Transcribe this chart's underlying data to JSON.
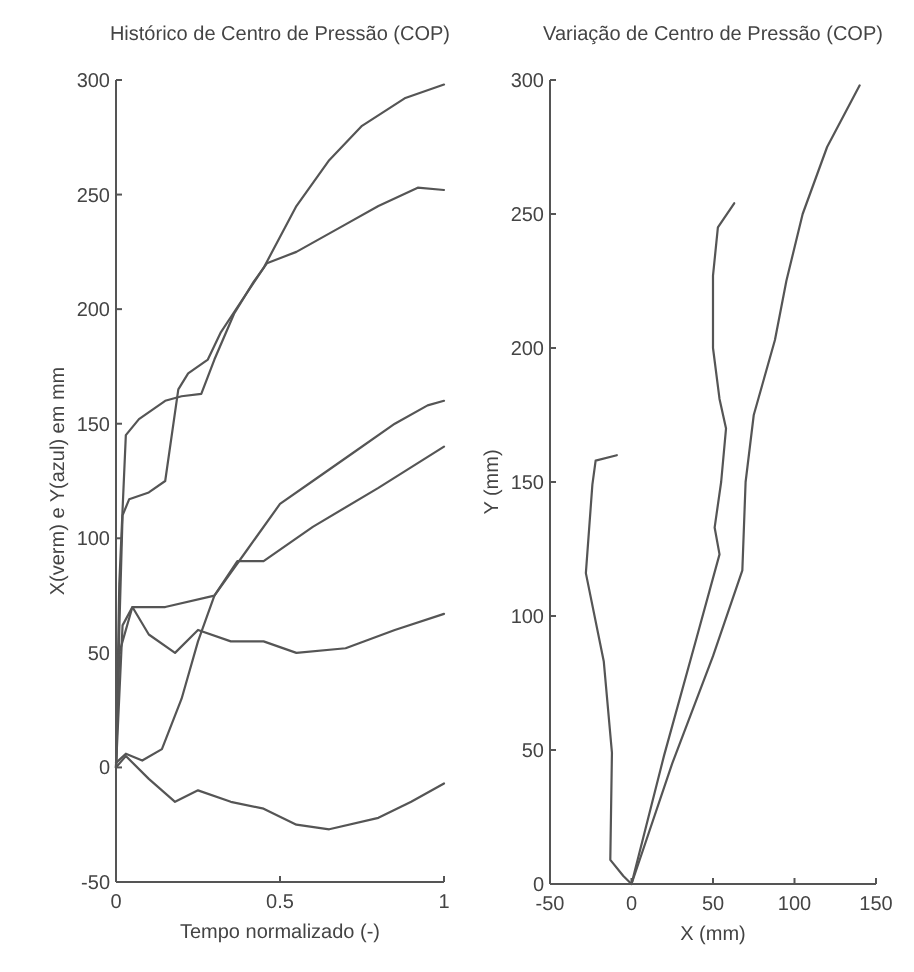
{
  "chart_data": [
    {
      "type": "line",
      "title": "Histórico de Centro de Pressão (COP)",
      "xlabel": "Tempo normalizado (-)",
      "ylabel": "X(verm) e Y(azul) em mm",
      "xlim": [
        0,
        1
      ],
      "xticks": [
        0,
        0.5,
        1
      ],
      "ylim": [
        -50,
        300
      ],
      "yticks": [
        -50,
        0,
        50,
        100,
        150,
        200,
        250,
        300
      ],
      "series": [
        {
          "color": "#555555",
          "x": [
            0,
            0.01,
            0.02,
            0.04,
            0.1,
            0.15,
            0.19,
            0.22,
            0.28,
            0.32,
            0.38,
            0.45,
            0.55,
            0.65,
            0.75,
            0.88,
            1
          ],
          "values": [
            0,
            60,
            110,
            117,
            120,
            125,
            165,
            172,
            178,
            190,
            203,
            218,
            245,
            265,
            280,
            292,
            298
          ]
        },
        {
          "color": "#555555",
          "x": [
            0,
            0.01,
            0.03,
            0.07,
            0.15,
            0.2,
            0.26,
            0.3,
            0.36,
            0.42,
            0.46,
            0.55,
            0.7,
            0.8,
            0.92,
            1
          ],
          "values": [
            0,
            80,
            145,
            152,
            160,
            162,
            163,
            178,
            198,
            212,
            220,
            225,
            237,
            245,
            253,
            252
          ]
        },
        {
          "color": "#555555",
          "x": [
            0,
            0.03,
            0.08,
            0.14,
            0.2,
            0.25,
            0.3,
            0.4,
            0.5,
            0.6,
            0.72,
            0.85,
            0.95,
            1
          ],
          "values": [
            2,
            6,
            3,
            8,
            30,
            55,
            75,
            95,
            115,
            125,
            137,
            150,
            158,
            160
          ]
        },
        {
          "color": "#555555",
          "x": [
            0,
            0.01,
            0.05,
            0.15,
            0.3,
            0.37,
            0.45,
            0.6,
            0.8,
            1
          ],
          "values": [
            0,
            50,
            70,
            70,
            75,
            90,
            90,
            105,
            122,
            140
          ]
        },
        {
          "color": "#555555",
          "x": [
            0,
            0.02,
            0.05,
            0.1,
            0.18,
            0.25,
            0.35,
            0.45,
            0.55,
            0.7,
            0.85,
            1
          ],
          "values": [
            0,
            62,
            70,
            58,
            50,
            60,
            55,
            55,
            50,
            52,
            60,
            67
          ]
        },
        {
          "color": "#555555",
          "x": [
            0,
            0.03,
            0.1,
            0.18,
            0.25,
            0.35,
            0.45,
            0.55,
            0.65,
            0.8,
            0.9,
            1
          ],
          "values": [
            0,
            5,
            -5,
            -15,
            -10,
            -15,
            -18,
            -25,
            -27,
            -22,
            -15,
            -7
          ]
        }
      ]
    },
    {
      "type": "line",
      "title": "Variação de Centro de Pressão (COP)",
      "xlabel": "X (mm)",
      "ylabel": "Y (mm)",
      "xlim": [
        -50,
        150
      ],
      "xticks": [
        -50,
        0,
        50,
        100,
        150
      ],
      "ylim": [
        0,
        300
      ],
      "yticks": [
        0,
        50,
        100,
        150,
        200,
        250,
        300
      ],
      "series": [
        {
          "color": "#555555",
          "x": [
            0,
            25,
            50,
            68,
            70,
            75,
            88,
            95,
            105,
            120,
            140
          ],
          "values": [
            0,
            45,
            85,
            117,
            150,
            175,
            203,
            225,
            250,
            275,
            298
          ]
        },
        {
          "color": "#555555",
          "x": [
            0,
            20,
            40,
            54,
            51,
            55,
            58,
            54,
            50,
            50,
            53,
            63
          ],
          "values": [
            0,
            48,
            92,
            123,
            133,
            150,
            170,
            181,
            200,
            227,
            245,
            254
          ]
        },
        {
          "color": "#555555",
          "x": [
            0,
            -5,
            -13,
            -12,
            -17,
            -28,
            -24,
            -22,
            -9
          ],
          "values": [
            0,
            3,
            9,
            49,
            83,
            116,
            149,
            158,
            160
          ]
        }
      ]
    }
  ]
}
